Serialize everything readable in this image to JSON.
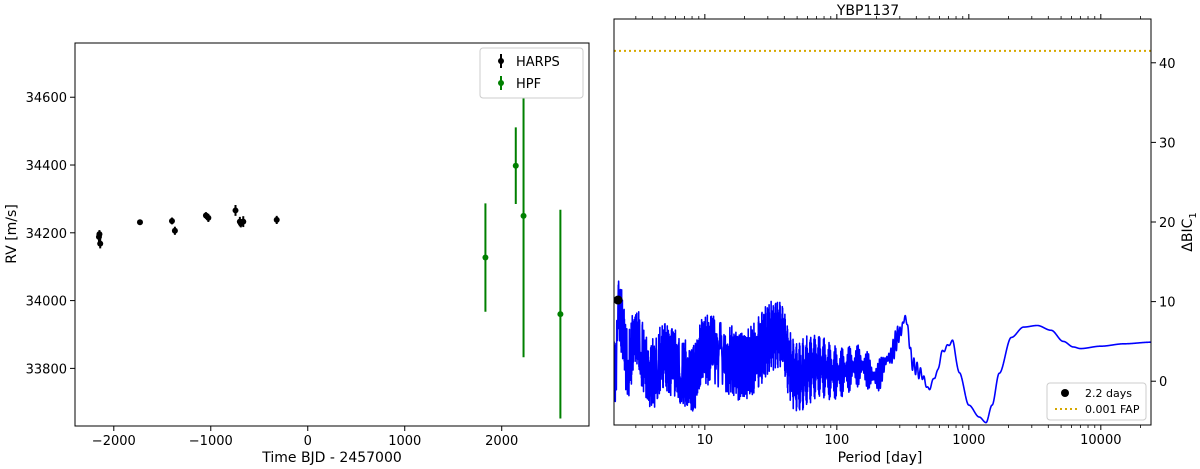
{
  "chart_data": [
    {
      "type": "scatter",
      "title": "",
      "xlabel": "Time BJD - 2457000",
      "ylabel": "RV [m/s]",
      "xlim": [
        -2400,
        2900
      ],
      "ylim": [
        33630,
        34760
      ],
      "xticks": [
        -2000,
        -1000,
        0,
        1000,
        2000
      ],
      "yticks": [
        33800,
        34000,
        34200,
        34400,
        34600
      ],
      "grid": false,
      "legend_position": "top-right",
      "colors": {
        "HARPS": "#000000",
        "HPF": "#008000"
      },
      "series": [
        {
          "name": "HARPS",
          "points": [
            {
              "x": -2153,
              "y": 34188,
              "err": 14
            },
            {
              "x": -2148,
              "y": 34196,
              "err": 12
            },
            {
              "x": -2140,
              "y": 34168,
              "err": 14
            },
            {
              "x": -1730,
              "y": 34231,
              "err": 5
            },
            {
              "x": -1400,
              "y": 34235,
              "err": 10
            },
            {
              "x": -1370,
              "y": 34206,
              "err": 12
            },
            {
              "x": -1050,
              "y": 34251,
              "err": 10
            },
            {
              "x": -1025,
              "y": 34244,
              "err": 12
            },
            {
              "x": -745,
              "y": 34266,
              "err": 16
            },
            {
              "x": -700,
              "y": 34233,
              "err": 14
            },
            {
              "x": -690,
              "y": 34228,
              "err": 12
            },
            {
              "x": -665,
              "y": 34233,
              "err": 16
            },
            {
              "x": -320,
              "y": 34238,
              "err": 12
            }
          ]
        },
        {
          "name": "HPF",
          "points": [
            {
              "x": 1832,
              "y": 34127,
              "err": 160
            },
            {
              "x": 2145,
              "y": 34398,
              "err": 113
            },
            {
              "x": 2225,
              "y": 34250,
              "err": 417
            },
            {
              "x": 2605,
              "y": 33960,
              "err": 308
            }
          ]
        }
      ]
    },
    {
      "type": "line",
      "title": "YBP1137",
      "xlabel": "Period [day]",
      "ylabel": "ΔBIC",
      "ylabel_subscript": "1",
      "xscale": "log",
      "xlim": [
        2.05,
        24000
      ],
      "ylim": [
        -5.5,
        45.5
      ],
      "xticks": [
        10,
        100,
        1000,
        10000
      ],
      "xtick_labels": [
        "10",
        "100",
        "1000",
        "10000"
      ],
      "yticks": [
        0,
        10,
        20,
        30,
        40
      ],
      "grid": false,
      "legend_position": "bottom-right",
      "fap_level": 41.5,
      "peak": {
        "x": 2.2,
        "y": 10.2
      },
      "colors": {
        "periodogram": "#0000ff",
        "fap": "#d6a800",
        "peak": "#000000"
      },
      "legend": [
        {
          "label": "2.2 days",
          "marker": "dot"
        },
        {
          "label": "0.001 FAP",
          "marker": "dotted-line"
        }
      ],
      "periodogram_anchors": [
        [
          2.05,
          0.5
        ],
        [
          2.15,
          3.5
        ],
        [
          2.2,
          10
        ],
        [
          2.3,
          8
        ],
        [
          2.6,
          2
        ],
        [
          3,
          5
        ],
        [
          4,
          1
        ],
        [
          5,
          3
        ],
        [
          8,
          0.5
        ],
        [
          10,
          4
        ],
        [
          20,
          2
        ],
        [
          35,
          6
        ],
        [
          50,
          0.5
        ],
        [
          70,
          2
        ],
        [
          100,
          1
        ],
        [
          150,
          2
        ],
        [
          200,
          0.5
        ],
        [
          250,
          3
        ],
        [
          300,
          6
        ],
        [
          330,
          8
        ],
        [
          380,
          2
        ],
        [
          430,
          1
        ],
        [
          500,
          -1
        ],
        [
          550,
          0.5
        ],
        [
          650,
          4
        ],
        [
          750,
          5
        ],
        [
          850,
          1
        ],
        [
          1000,
          -3
        ],
        [
          1200,
          -4.5
        ],
        [
          1350,
          -5.2
        ],
        [
          1500,
          -3
        ],
        [
          1700,
          1
        ],
        [
          2100,
          5.5
        ],
        [
          2600,
          6.8
        ],
        [
          3300,
          7
        ],
        [
          4200,
          6.4
        ],
        [
          5200,
          5
        ],
        [
          6200,
          4.3
        ],
        [
          7000,
          4.1
        ],
        [
          10000,
          4.4
        ],
        [
          15000,
          4.7
        ],
        [
          24000,
          4.9
        ]
      ]
    }
  ]
}
